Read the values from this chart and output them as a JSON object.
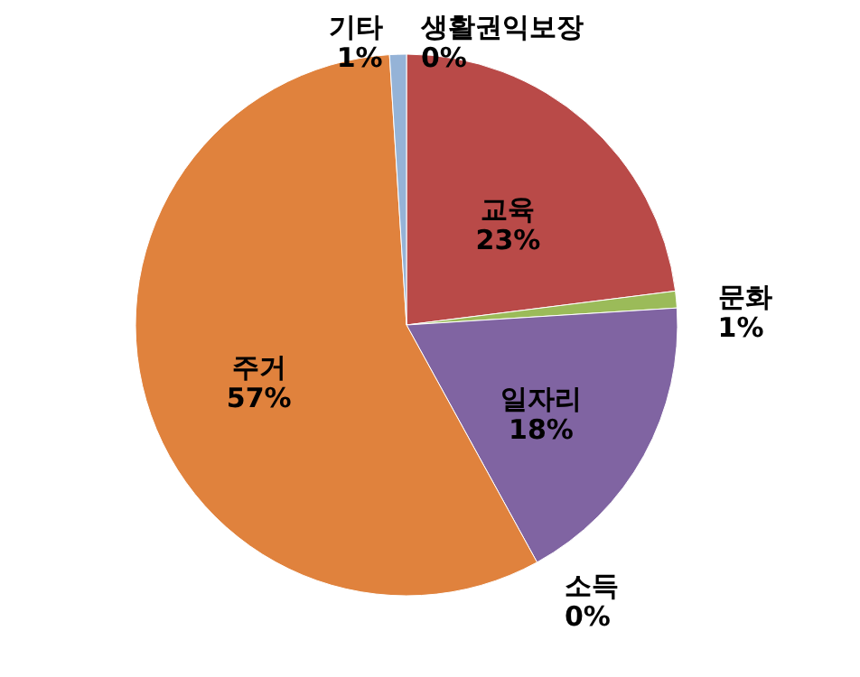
{
  "chart_data": {
    "type": "pie",
    "categories": [
      "생활권익보장",
      "교육",
      "문화",
      "일자리",
      "소득",
      "주거",
      "기타"
    ],
    "values": [
      0,
      23,
      1,
      18,
      0,
      57,
      1
    ],
    "value_labels": [
      "0%",
      "23%",
      "1%",
      "18%",
      "0%",
      "57%",
      "1%"
    ],
    "colors": [
      "#4f81bd",
      "#b94a48",
      "#9bbb59",
      "#8064a2",
      "#4bacc6",
      "#e0823d",
      "#95b3d7"
    ],
    "legend": false
  }
}
